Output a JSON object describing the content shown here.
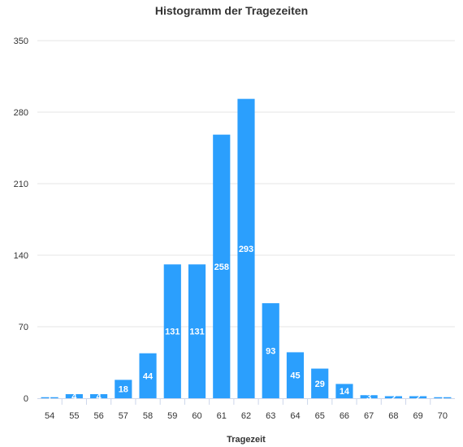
{
  "chart_data": {
    "type": "bar",
    "title": "Histogramm der Tragezeiten",
    "xlabel": "Tragezeit",
    "ylabel": "",
    "ylim": [
      0,
      350
    ],
    "yticks": [
      0,
      70,
      140,
      210,
      280,
      350
    ],
    "grid": true,
    "categories": [
      "54",
      "55",
      "56",
      "57",
      "58",
      "59",
      "60",
      "61",
      "62",
      "63",
      "64",
      "65",
      "66",
      "67",
      "68",
      "69",
      "70"
    ],
    "values": [
      1,
      4,
      4,
      18,
      44,
      131,
      131,
      258,
      293,
      93,
      45,
      29,
      14,
      3,
      2,
      2,
      1
    ],
    "bar_color": "#2b9ffd"
  }
}
